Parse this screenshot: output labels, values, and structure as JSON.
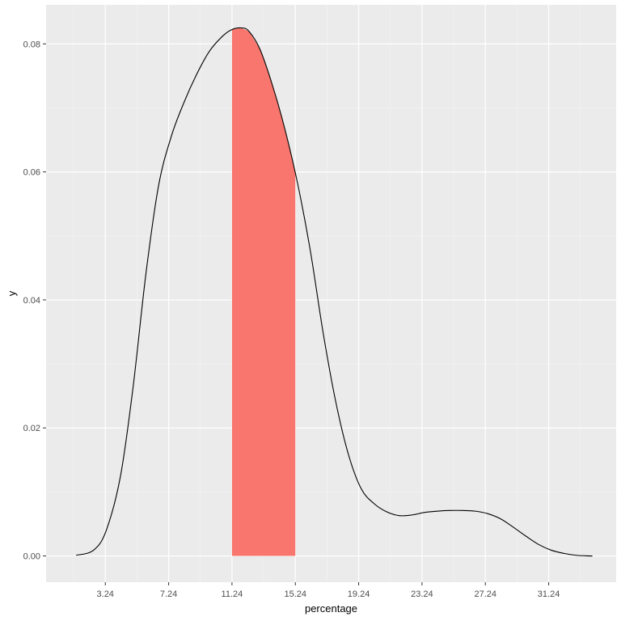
{
  "chart_data": {
    "type": "area",
    "title": "",
    "xlabel": "percentage",
    "ylabel": "y",
    "xlim": [
      -0.5,
      35.5
    ],
    "ylim": [
      -0.0041,
      0.0861
    ],
    "x_ticks": [
      3.24,
      7.24,
      11.24,
      15.24,
      19.24,
      23.24,
      27.24,
      31.24
    ],
    "x_tick_labels": [
      "3.24",
      "7.24",
      "11.24",
      "15.24",
      "19.24",
      "23.24",
      "27.24",
      "31.24"
    ],
    "y_ticks": [
      0.0,
      0.02,
      0.04,
      0.06,
      0.08
    ],
    "y_tick_labels": [
      "0.00",
      "0.02",
      "0.04",
      "0.06",
      "0.08"
    ],
    "grid": true,
    "legend": "none",
    "series": [
      {
        "kind": "density-line",
        "color": "#000000",
        "x": [
          1.4,
          2.5,
          3.3,
          4.2,
          5.0,
          5.8,
          6.6,
          7.4,
          8.2,
          9.0,
          9.8,
          10.6,
          11.2,
          11.8,
          12.3,
          13.0,
          13.8,
          14.6,
          15.4,
          16.2,
          17.0,
          17.8,
          18.6,
          19.4,
          20.2,
          21.0,
          21.8,
          22.6,
          23.4,
          24.2,
          25.0,
          25.8,
          26.6,
          27.4,
          28.2,
          29.0,
          29.8,
          30.6,
          31.4,
          32.2,
          33.0,
          33.8,
          34.0
        ],
        "y": [
          0.0001,
          0.0009,
          0.004,
          0.0125,
          0.0265,
          0.044,
          0.0578,
          0.0655,
          0.0708,
          0.0752,
          0.0788,
          0.0811,
          0.0822,
          0.0825,
          0.082,
          0.0792,
          0.0735,
          0.0665,
          0.058,
          0.0475,
          0.0348,
          0.024,
          0.0158,
          0.0105,
          0.0082,
          0.0069,
          0.0063,
          0.0064,
          0.0068,
          0.007,
          0.0071,
          0.0071,
          0.007,
          0.0066,
          0.0058,
          0.0045,
          0.0031,
          0.0018,
          0.0009,
          0.0004,
          0.0001,
          0.0,
          0.0
        ]
      },
      {
        "kind": "highlight-band",
        "color": "#F8766D",
        "x_range": [
          11.24,
          15.24
        ]
      }
    ]
  }
}
